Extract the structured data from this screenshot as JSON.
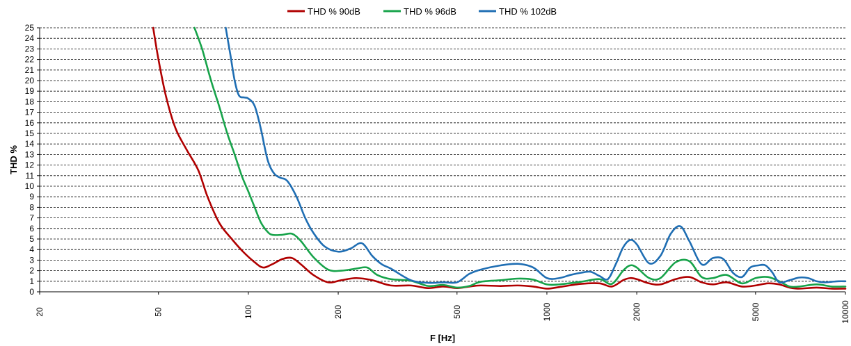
{
  "chart_data": {
    "type": "line",
    "xlabel": "F [Hz]",
    "ylabel": "THD %",
    "x_scale": "log",
    "xlim": [
      20,
      10000
    ],
    "ylim": [
      0,
      25
    ],
    "x_ticks": [
      20,
      50,
      100,
      200,
      500,
      1000,
      2000,
      5000,
      10000
    ],
    "y_ticks": [
      0,
      1,
      2,
      3,
      4,
      5,
      6,
      7,
      8,
      9,
      10,
      11,
      12,
      13,
      14,
      15,
      16,
      17,
      18,
      19,
      20,
      21,
      22,
      23,
      24,
      25
    ],
    "grid": "horizontal dashed",
    "legend_position": "top",
    "series": [
      {
        "name": "THD % 90dB",
        "color": "#b00000",
        "x": [
          48,
          50,
          53,
          57,
          62,
          68,
          73,
          80,
          88,
          96,
          105,
          112,
          120,
          130,
          140,
          150,
          165,
          185,
          205,
          230,
          260,
          300,
          350,
          400,
          450,
          500,
          550,
          600,
          700,
          800,
          900,
          1000,
          1100,
          1300,
          1500,
          1650,
          1800,
          1900,
          2000,
          2200,
          2400,
          2700,
          3000,
          3300,
          3600,
          4000,
          4500,
          5000,
          5500,
          6000,
          6500,
          7000,
          8000,
          9000,
          10000
        ],
        "values": [
          25,
          22,
          18.5,
          15.5,
          13.5,
          11.5,
          9,
          6.5,
          5,
          3.8,
          2.8,
          2.3,
          2.6,
          3.1,
          3.2,
          2.6,
          1.6,
          0.9,
          1.1,
          1.3,
          1.1,
          0.6,
          0.6,
          0.35,
          0.5,
          0.35,
          0.5,
          0.6,
          0.55,
          0.6,
          0.5,
          0.3,
          0.45,
          0.75,
          0.8,
          0.5,
          1.1,
          1.3,
          1.2,
          0.8,
          0.7,
          1.2,
          1.4,
          0.9,
          0.7,
          0.9,
          0.5,
          0.6,
          0.8,
          0.7,
          0.4,
          0.3,
          0.4,
          0.3,
          0.3
        ]
      },
      {
        "name": "THD % 96dB",
        "color": "#17a34a",
        "x": [
          66,
          70,
          75,
          80,
          85,
          90,
          95,
          100,
          105,
          110,
          115,
          120,
          130,
          140,
          150,
          165,
          185,
          205,
          230,
          250,
          270,
          300,
          350,
          400,
          450,
          500,
          550,
          600,
          700,
          800,
          900,
          1000,
          1100,
          1300,
          1500,
          1650,
          1800,
          1900,
          2000,
          2200,
          2400,
          2700,
          3000,
          3300,
          3600,
          4000,
          4500,
          5000,
          5500,
          6000,
          6500,
          7000,
          8000,
          9000,
          10000
        ],
        "values": [
          25,
          23,
          20,
          17.5,
          15,
          13,
          11,
          9.5,
          8,
          6.6,
          5.8,
          5.4,
          5.4,
          5.5,
          4.8,
          3.3,
          2.1,
          2,
          2.2,
          2.3,
          1.6,
          1.2,
          1.05,
          0.55,
          0.65,
          0.4,
          0.55,
          0.95,
          1.1,
          1.25,
          1.15,
          0.7,
          0.7,
          0.95,
          1.2,
          0.75,
          2,
          2.5,
          2.3,
          1.3,
          1.3,
          2.8,
          2.9,
          1.4,
          1.3,
          1.6,
          0.8,
          1.3,
          1.4,
          1,
          0.5,
          0.5,
          0.7,
          0.5,
          0.5
        ]
      },
      {
        "name": "THD % 102dB",
        "color": "#1f6eb3",
        "x": [
          84,
          87,
          90,
          93,
          97,
          100,
          105,
          110,
          116,
          122,
          128,
          135,
          145,
          155,
          165,
          180,
          200,
          220,
          240,
          260,
          280,
          300,
          350,
          400,
          450,
          500,
          550,
          600,
          700,
          800,
          900,
          1000,
          1100,
          1200,
          1300,
          1400,
          1500,
          1600,
          1700,
          1800,
          1900,
          2000,
          2200,
          2400,
          2600,
          2800,
          3000,
          3300,
          3600,
          3900,
          4200,
          4500,
          4800,
          5100,
          5400,
          5700,
          6000,
          6500,
          7000,
          7500,
          8000,
          8500,
          9000,
          9500,
          10000
        ],
        "values": [
          25,
          22.5,
          20,
          18.6,
          18.4,
          18.3,
          17.6,
          15.5,
          12.5,
          11.2,
          10.8,
          10.5,
          9,
          7,
          5.6,
          4.3,
          3.8,
          4.1,
          4.6,
          3.4,
          2.6,
          2.2,
          1.1,
          0.85,
          0.9,
          0.9,
          1.7,
          2.1,
          2.5,
          2.65,
          2.3,
          1.3,
          1.3,
          1.6,
          1.8,
          1.9,
          1.5,
          1.2,
          2.6,
          4.2,
          4.9,
          4.5,
          2.7,
          3.4,
          5.5,
          6.2,
          4.8,
          2.6,
          3.2,
          3.1,
          1.8,
          1.4,
          2.3,
          2.5,
          2.5,
          1.8,
          0.9,
          1.1,
          1.35,
          1.3,
          1,
          0.9,
          0.95,
          1,
          1
        ]
      }
    ]
  }
}
